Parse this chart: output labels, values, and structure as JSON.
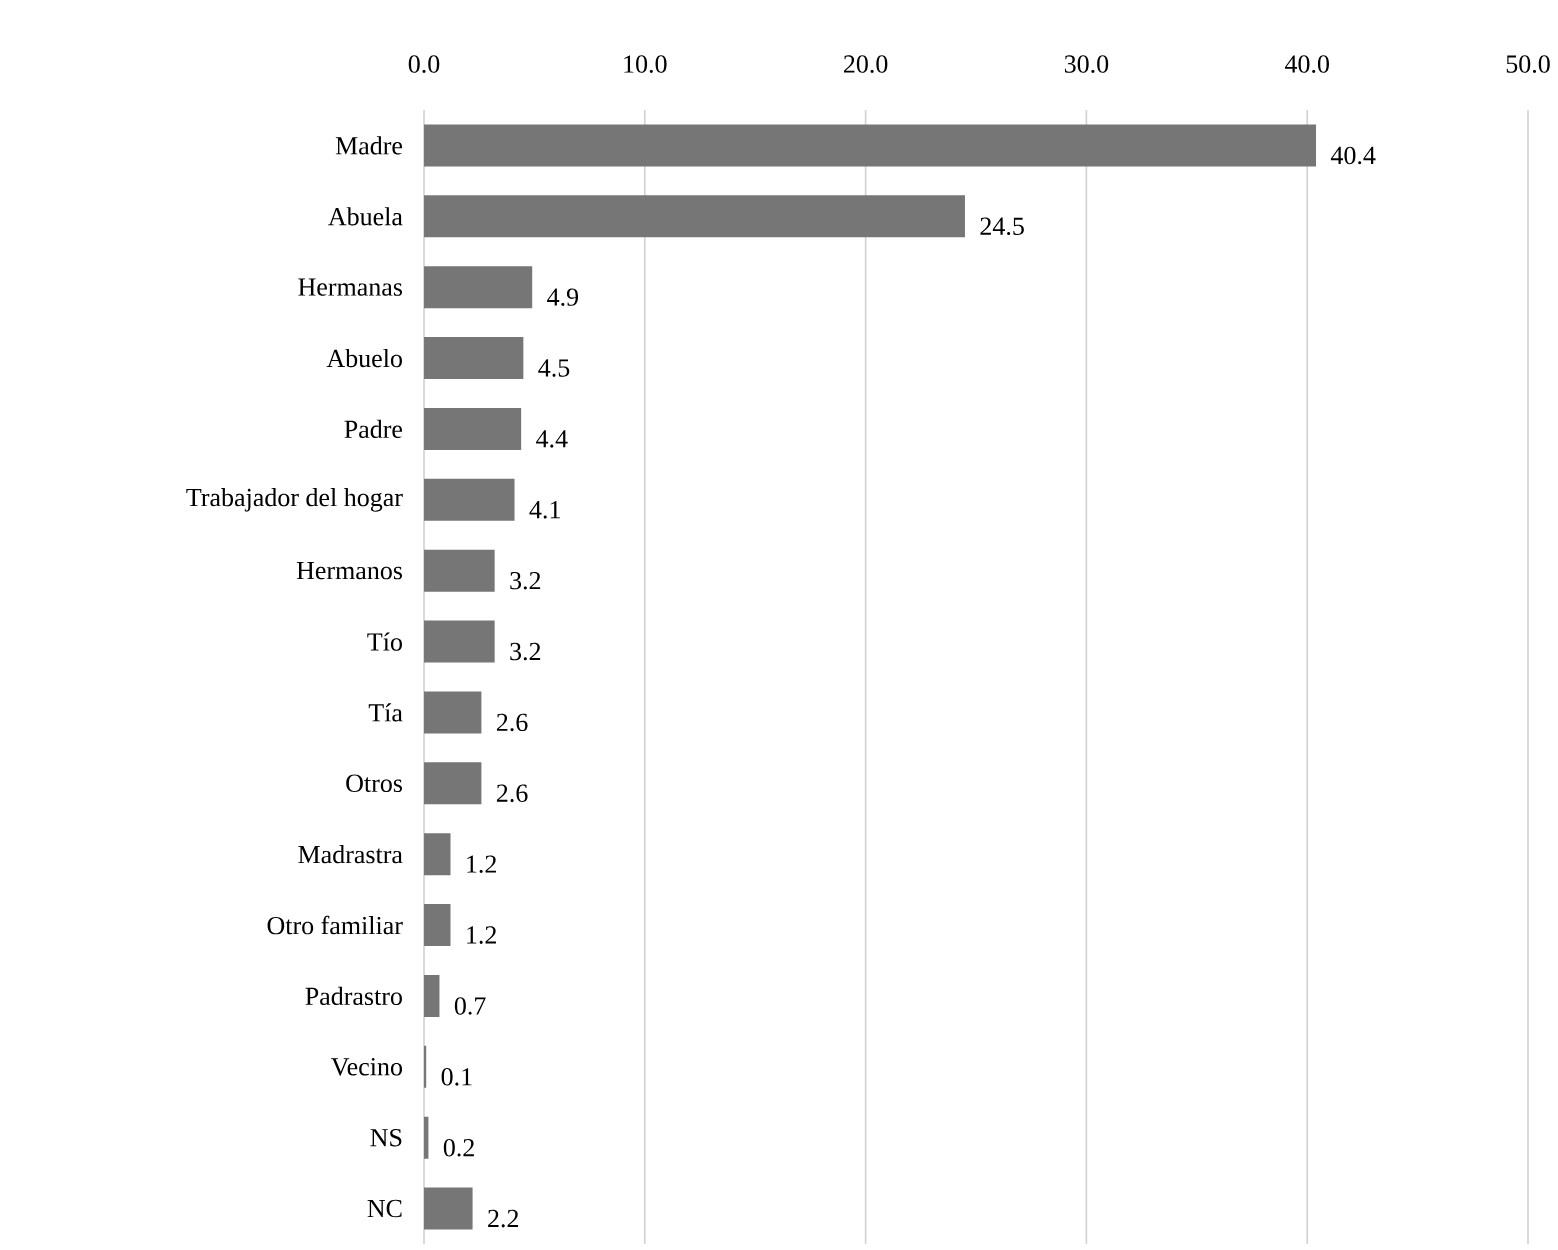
{
  "chart_data": {
    "type": "bar",
    "orientation": "horizontal",
    "categories": [
      "Madre",
      "Abuela",
      "Hermanas",
      "Abuelo",
      "Padre",
      "Trabajador del hogar",
      "Hermanos",
      "Tío",
      "Tía",
      "Otros",
      "Madrastra",
      "Otro familiar",
      "Padrastro",
      "Vecino",
      "NS",
      "NC"
    ],
    "values": [
      40.4,
      24.5,
      4.9,
      4.5,
      4.4,
      4.1,
      3.2,
      3.2,
      2.6,
      2.6,
      1.2,
      1.2,
      0.7,
      0.1,
      0.2,
      2.2
    ],
    "color": "#767676",
    "xlim": [
      0,
      50
    ],
    "xticks": [
      {
        "value": 0,
        "label": "0.0"
      },
      {
        "value": 10,
        "label": "10.0"
      },
      {
        "value": 20,
        "label": "20.0"
      },
      {
        "value": 30,
        "label": "30.0"
      },
      {
        "value": 40,
        "label": "40.0"
      },
      {
        "value": 50,
        "label": "50.0"
      }
    ],
    "grid": "x",
    "data_labels": true
  }
}
